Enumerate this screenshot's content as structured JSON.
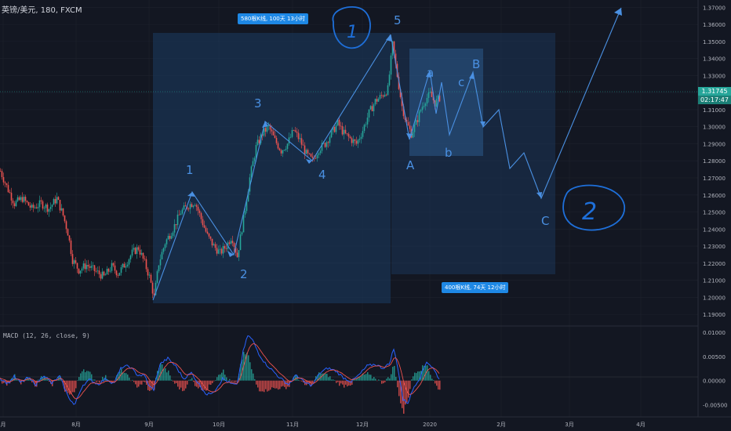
{
  "header": {
    "symbol": "英镑/美元, 180, FXCM"
  },
  "macd": {
    "title": "MACD (12, 26, close, 9)"
  },
  "price_axis": {
    "ticks": [
      "1.37000",
      "1.36000",
      "1.35000",
      "1.34000",
      "1.33000",
      "1.32000",
      "1.31000",
      "1.30000",
      "1.29000",
      "1.28000",
      "1.27000",
      "1.26000",
      "1.25000",
      "1.24000",
      "1.23000",
      "1.22000",
      "1.21000",
      "1.20000",
      "1.19000"
    ],
    "current_price": "1.31745",
    "countdown": "02:17:47"
  },
  "macd_axis": {
    "ticks": [
      "0.01000",
      "0.00500",
      "0.00000",
      "-0.00500"
    ]
  },
  "time_axis": {
    "labels": [
      "月",
      "8月",
      "9月",
      "10月",
      "11月",
      "12月",
      "2020",
      "2月",
      "3月",
      "4月"
    ]
  },
  "annotations": {
    "box1_label": "580根K线, 100天 13小时",
    "box2_label": "400根K线, 74天 12小时",
    "waves": [
      "1",
      "2",
      "3",
      "4",
      "5",
      "A",
      "a",
      "b",
      "c",
      "B",
      "C"
    ],
    "hand_1": "1",
    "hand_2": "2"
  },
  "colors": {
    "background": "#131722",
    "up": "#26a69a",
    "down": "#ef5350",
    "wave": "#4a90e2",
    "box": "#1c3c63"
  },
  "chart_data": {
    "type": "candlestick",
    "title": "英镑/美元, 180, FXCM",
    "ylim": [
      1.185,
      1.372
    ],
    "x": [
      "月",
      "8月",
      "9月",
      "10月",
      "11月",
      "12月",
      "2020",
      "2月",
      "3月",
      "4月"
    ],
    "price_path": [
      [
        0,
        1.274
      ],
      [
        8,
        1.265
      ],
      [
        18,
        1.255
      ],
      [
        28,
        1.258
      ],
      [
        40,
        1.252
      ],
      [
        52,
        1.255
      ],
      [
        62,
        1.252
      ],
      [
        72,
        1.258
      ],
      [
        80,
        1.248
      ],
      [
        86,
        1.238
      ],
      [
        92,
        1.222
      ],
      [
        100,
        1.216
      ],
      [
        110,
        1.219
      ],
      [
        122,
        1.215
      ],
      [
        132,
        1.212
      ],
      [
        142,
        1.218
      ],
      [
        150,
        1.214
      ],
      [
        160,
        1.22
      ],
      [
        168,
        1.226
      ],
      [
        176,
        1.229
      ],
      [
        184,
        1.22
      ],
      [
        190,
        1.212
      ],
      [
        196,
        1.2
      ],
      [
        202,
        1.22
      ],
      [
        210,
        1.232
      ],
      [
        220,
        1.24
      ],
      [
        230,
        1.25
      ],
      [
        240,
        1.254
      ],
      [
        248,
        1.256
      ],
      [
        256,
        1.246
      ],
      [
        264,
        1.236
      ],
      [
        272,
        1.23
      ],
      [
        280,
        1.226
      ],
      [
        288,
        1.23
      ],
      [
        295,
        1.236
      ],
      [
        302,
        1.224
      ],
      [
        310,
        1.246
      ],
      [
        318,
        1.27
      ],
      [
        326,
        1.288
      ],
      [
        334,
        1.296
      ],
      [
        342,
        1.3
      ],
      [
        350,
        1.292
      ],
      [
        358,
        1.286
      ],
      [
        366,
        1.29
      ],
      [
        374,
        1.298
      ],
      [
        382,
        1.292
      ],
      [
        390,
        1.284
      ],
      [
        398,
        1.28
      ],
      [
        406,
        1.287
      ],
      [
        414,
        1.29
      ],
      [
        422,
        1.296
      ],
      [
        430,
        1.302
      ],
      [
        438,
        1.296
      ],
      [
        446,
        1.293
      ],
      [
        454,
        1.29
      ],
      [
        462,
        1.298
      ],
      [
        470,
        1.308
      ],
      [
        478,
        1.315
      ],
      [
        486,
        1.318
      ],
      [
        494,
        1.322
      ],
      [
        500,
        1.348
      ],
      [
        506,
        1.33
      ],
      [
        512,
        1.312
      ],
      [
        518,
        1.302
      ],
      [
        524,
        1.296
      ],
      [
        530,
        1.302
      ],
      [
        536,
        1.31
      ],
      [
        542,
        1.316
      ],
      [
        548,
        1.319
      ],
      [
        554,
        1.314
      ],
      [
        560,
        1.317
      ]
    ],
    "macd_ylim": [
      -0.0072,
      0.011
    ],
    "macd_path": [
      [
        0,
        0.0005
      ],
      [
        10,
        -0.0006
      ],
      [
        18,
        0.0008
      ],
      [
        26,
        -0.0004
      ],
      [
        36,
        0.0006
      ],
      [
        46,
        -0.0008
      ],
      [
        56,
        0.0012
      ],
      [
        66,
        -0.0006
      ],
      [
        76,
        0.0009
      ],
      [
        86,
        -0.003
      ],
      [
        95,
        -0.0052
      ],
      [
        105,
        -0.001
      ],
      [
        115,
        0.0002
      ],
      [
        125,
        -0.0008
      ],
      [
        135,
        0.0004
      ],
      [
        145,
        -0.0006
      ],
      [
        155,
        0.0028
      ],
      [
        165,
        0.003
      ],
      [
        175,
        0.0012
      ],
      [
        185,
        0.001
      ],
      [
        190,
        -0.0012
      ],
      [
        196,
        -0.0018
      ],
      [
        204,
        0.0034
      ],
      [
        214,
        0.0046
      ],
      [
        224,
        0.003
      ],
      [
        234,
        0.0004
      ],
      [
        244,
        0.0016
      ],
      [
        254,
        -0.0008
      ],
      [
        264,
        -0.003
      ],
      [
        274,
        -0.002
      ],
      [
        284,
        0.0004
      ],
      [
        294,
        -0.0006
      ],
      [
        302,
        -0.001
      ],
      [
        310,
        0.006
      ],
      [
        316,
        0.0094
      ],
      [
        322,
        0.0084
      ],
      [
        330,
        0.0056
      ],
      [
        338,
        0.0036
      ],
      [
        348,
        0.002
      ],
      [
        358,
        0.0004
      ],
      [
        368,
        -0.0008
      ],
      [
        378,
        0.0012
      ],
      [
        388,
        -0.0004
      ],
      [
        398,
        -0.001
      ],
      [
        408,
        0.0016
      ],
      [
        418,
        0.0026
      ],
      [
        428,
        0.002
      ],
      [
        438,
        0.0006
      ],
      [
        448,
        -0.0002
      ],
      [
        458,
        0.0012
      ],
      [
        468,
        0.003
      ],
      [
        478,
        0.0034
      ],
      [
        488,
        0.0026
      ],
      [
        496,
        0.0034
      ],
      [
        502,
        0.0066
      ],
      [
        508,
        0.002
      ],
      [
        514,
        -0.004
      ],
      [
        520,
        -0.0046
      ],
      [
        528,
        -0.0012
      ],
      [
        536,
        0.0008
      ],
      [
        544,
        0.004
      ],
      [
        552,
        0.0026
      ],
      [
        560,
        0.0004
      ]
    ]
  }
}
